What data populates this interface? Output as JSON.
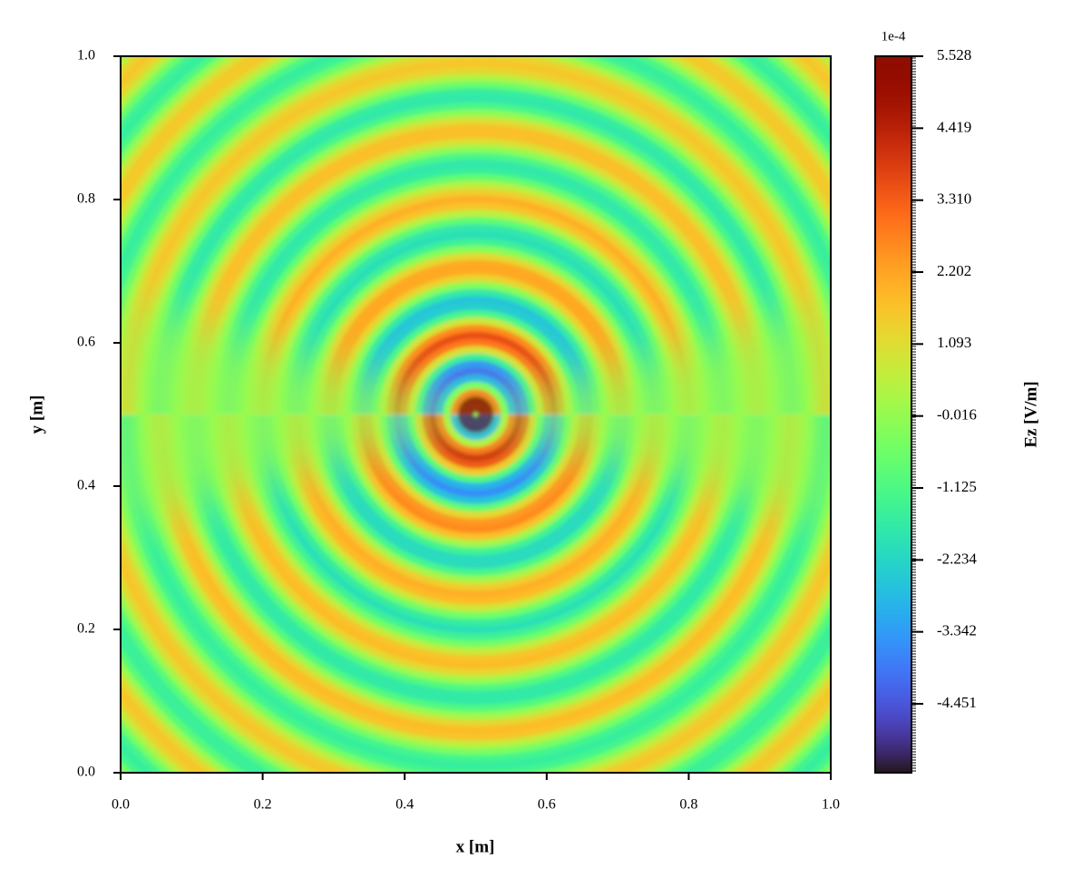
{
  "chart_data": {
    "type": "heatmap",
    "colormap": "turbo",
    "xlabel": "x [m]",
    "ylabel": "y [m]",
    "xlim": [
      0,
      1
    ],
    "ylim": [
      0,
      1
    ],
    "xticks": [
      {
        "value": 0,
        "label": "0.0"
      },
      0.2,
      0.4,
      0.6,
      0.8,
      {
        "value": 1,
        "label": "1.0"
      }
    ],
    "yticks": [
      {
        "value": 0,
        "label": "0.0"
      },
      0.2,
      0.4,
      0.6,
      0.8,
      {
        "value": 1,
        "label": "1.0"
      }
    ],
    "center": [
      0.5,
      0.5
    ],
    "r": [
      0,
      0.01,
      0.02,
      0.03,
      0.04,
      0.05,
      0.06,
      0.07,
      0.08,
      0.09,
      0.1,
      0.11,
      0.12,
      0.13,
      0.14,
      0.15,
      0.16,
      0.17,
      0.18,
      0.19,
      0.2,
      0.21,
      0.22,
      0.23,
      0.24,
      0.25,
      0.26,
      0.27,
      0.28,
      0.29,
      0.3,
      0.31,
      0.32,
      0.33,
      0.34,
      0.35,
      0.36,
      0.37,
      0.38,
      0.39,
      0.4,
      0.41,
      0.42,
      0.43,
      0.44,
      0.45,
      0.46,
      0.47,
      0.48,
      0.49,
      0.5,
      0.51,
      0.52,
      0.53,
      0.54,
      0.55,
      0.56,
      0.57,
      0.58,
      0.59,
      0.6,
      0.61,
      0.62,
      0.63,
      0.64,
      0.65,
      0.66,
      0.67,
      0.68,
      0.69,
      0.7,
      0.71
    ],
    "values_above": [
      3.0,
      5.2,
      5.2,
      2.8,
      -0.4,
      -2.9,
      -4.0,
      -3.4,
      -1.5,
      1.0,
      2.9,
      3.6,
      2.6,
      0.8,
      -1.2,
      -2.4,
      -2.6,
      -1.7,
      -0.2,
      1.3,
      2.1,
      2.1,
      1.2,
      -0.2,
      -1.4,
      -2.0,
      -1.8,
      -0.8,
      0.5,
      1.6,
      2.0,
      1.4,
      0.5,
      -0.7,
      -1.6,
      -1.8,
      -1.2,
      -0.1,
      1.0,
      1.7,
      1.7,
      1.0,
      -0.1,
      -1.2,
      -1.8,
      -1.6,
      -0.6,
      0.4,
      1.3,
      1.6,
      1.3,
      0.4,
      -0.6,
      -1.4,
      -1.6,
      -1.1,
      -0.1,
      0.9,
      1.5,
      1.5,
      0.9,
      -0.1,
      -1.1,
      -1.6,
      -1.4,
      -0.6,
      0.4,
      1.3,
      1.6,
      1.3,
      0.4,
      -0.6
    ],
    "values_below": [
      -3.0,
      -5.2,
      -5.2,
      -2.8,
      0.4,
      2.9,
      4.0,
      3.4,
      1.5,
      -1.0,
      -2.9,
      -3.6,
      -2.6,
      -0.8,
      1.2,
      2.4,
      2.6,
      1.7,
      0.2,
      -1.3,
      -2.1,
      -2.1,
      -1.2,
      0.2,
      1.4,
      2.0,
      1.8,
      0.8,
      -0.5,
      -1.6,
      -2.0,
      -1.4,
      -0.5,
      0.7,
      1.6,
      1.8,
      1.2,
      0.1,
      -1.0,
      -1.7,
      -1.7,
      -1.0,
      0.1,
      1.2,
      1.8,
      1.6,
      0.6,
      -0.4,
      -1.3,
      -1.6,
      -1.3,
      -0.4,
      0.6,
      1.4,
      1.6,
      1.1,
      0.1,
      -0.9,
      -1.5,
      -1.5,
      -0.9,
      0.1,
      1.1,
      1.6,
      1.4,
      0.6,
      -0.4,
      -1.3,
      -1.6,
      -1.3,
      -0.4,
      0.6
    ],
    "colorbar": {
      "label": "Ez [V/m]",
      "offset_label": "1e-4",
      "clim": [
        -5.513,
        5.528
      ],
      "ticks": [
        -4.451,
        -3.342,
        -2.234,
        -1.125,
        -0.016,
        1.093,
        2.202,
        {
          "value": 3.31,
          "label": "3.310"
        },
        4.419,
        5.528
      ]
    }
  }
}
